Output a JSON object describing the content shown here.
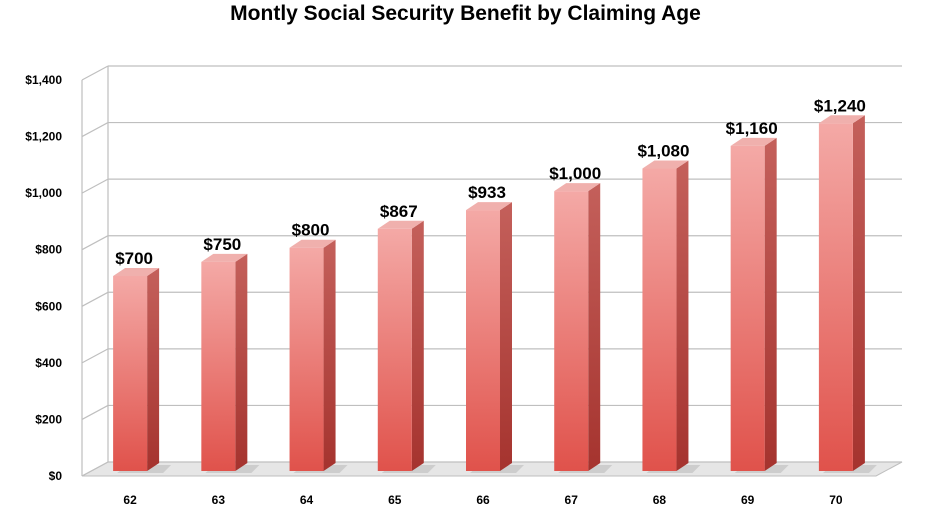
{
  "chart_data": {
    "type": "bar",
    "title": "Montly Social Security Benefit by Claiming Age",
    "xlabel": "",
    "ylabel": "",
    "categories": [
      "62",
      "63",
      "64",
      "65",
      "66",
      "67",
      "68",
      "69",
      "70"
    ],
    "values": [
      700,
      750,
      800,
      867,
      933,
      1000,
      1080,
      1160,
      1240
    ],
    "data_labels": [
      "$700",
      "$750",
      "$800",
      "$867",
      "$933",
      "$1,000",
      "$1,080",
      "$1,160",
      "$1,240"
    ],
    "ylim": [
      0,
      1400
    ],
    "yticks": [
      0,
      200,
      400,
      600,
      800,
      1000,
      1200,
      1400
    ],
    "ytick_labels": [
      "$0",
      "$200",
      "$400",
      "$600",
      "$800",
      "$1,000",
      "$1,200",
      "$1,400"
    ],
    "grid": true,
    "style": "3d-column",
    "colors": {
      "bar_light": "#f4a9a6",
      "bar_dark": "#e0524b",
      "bar_side": "#b53a35",
      "bar_top": "#f0b0ad",
      "grid": "#bfbfbf"
    }
  }
}
